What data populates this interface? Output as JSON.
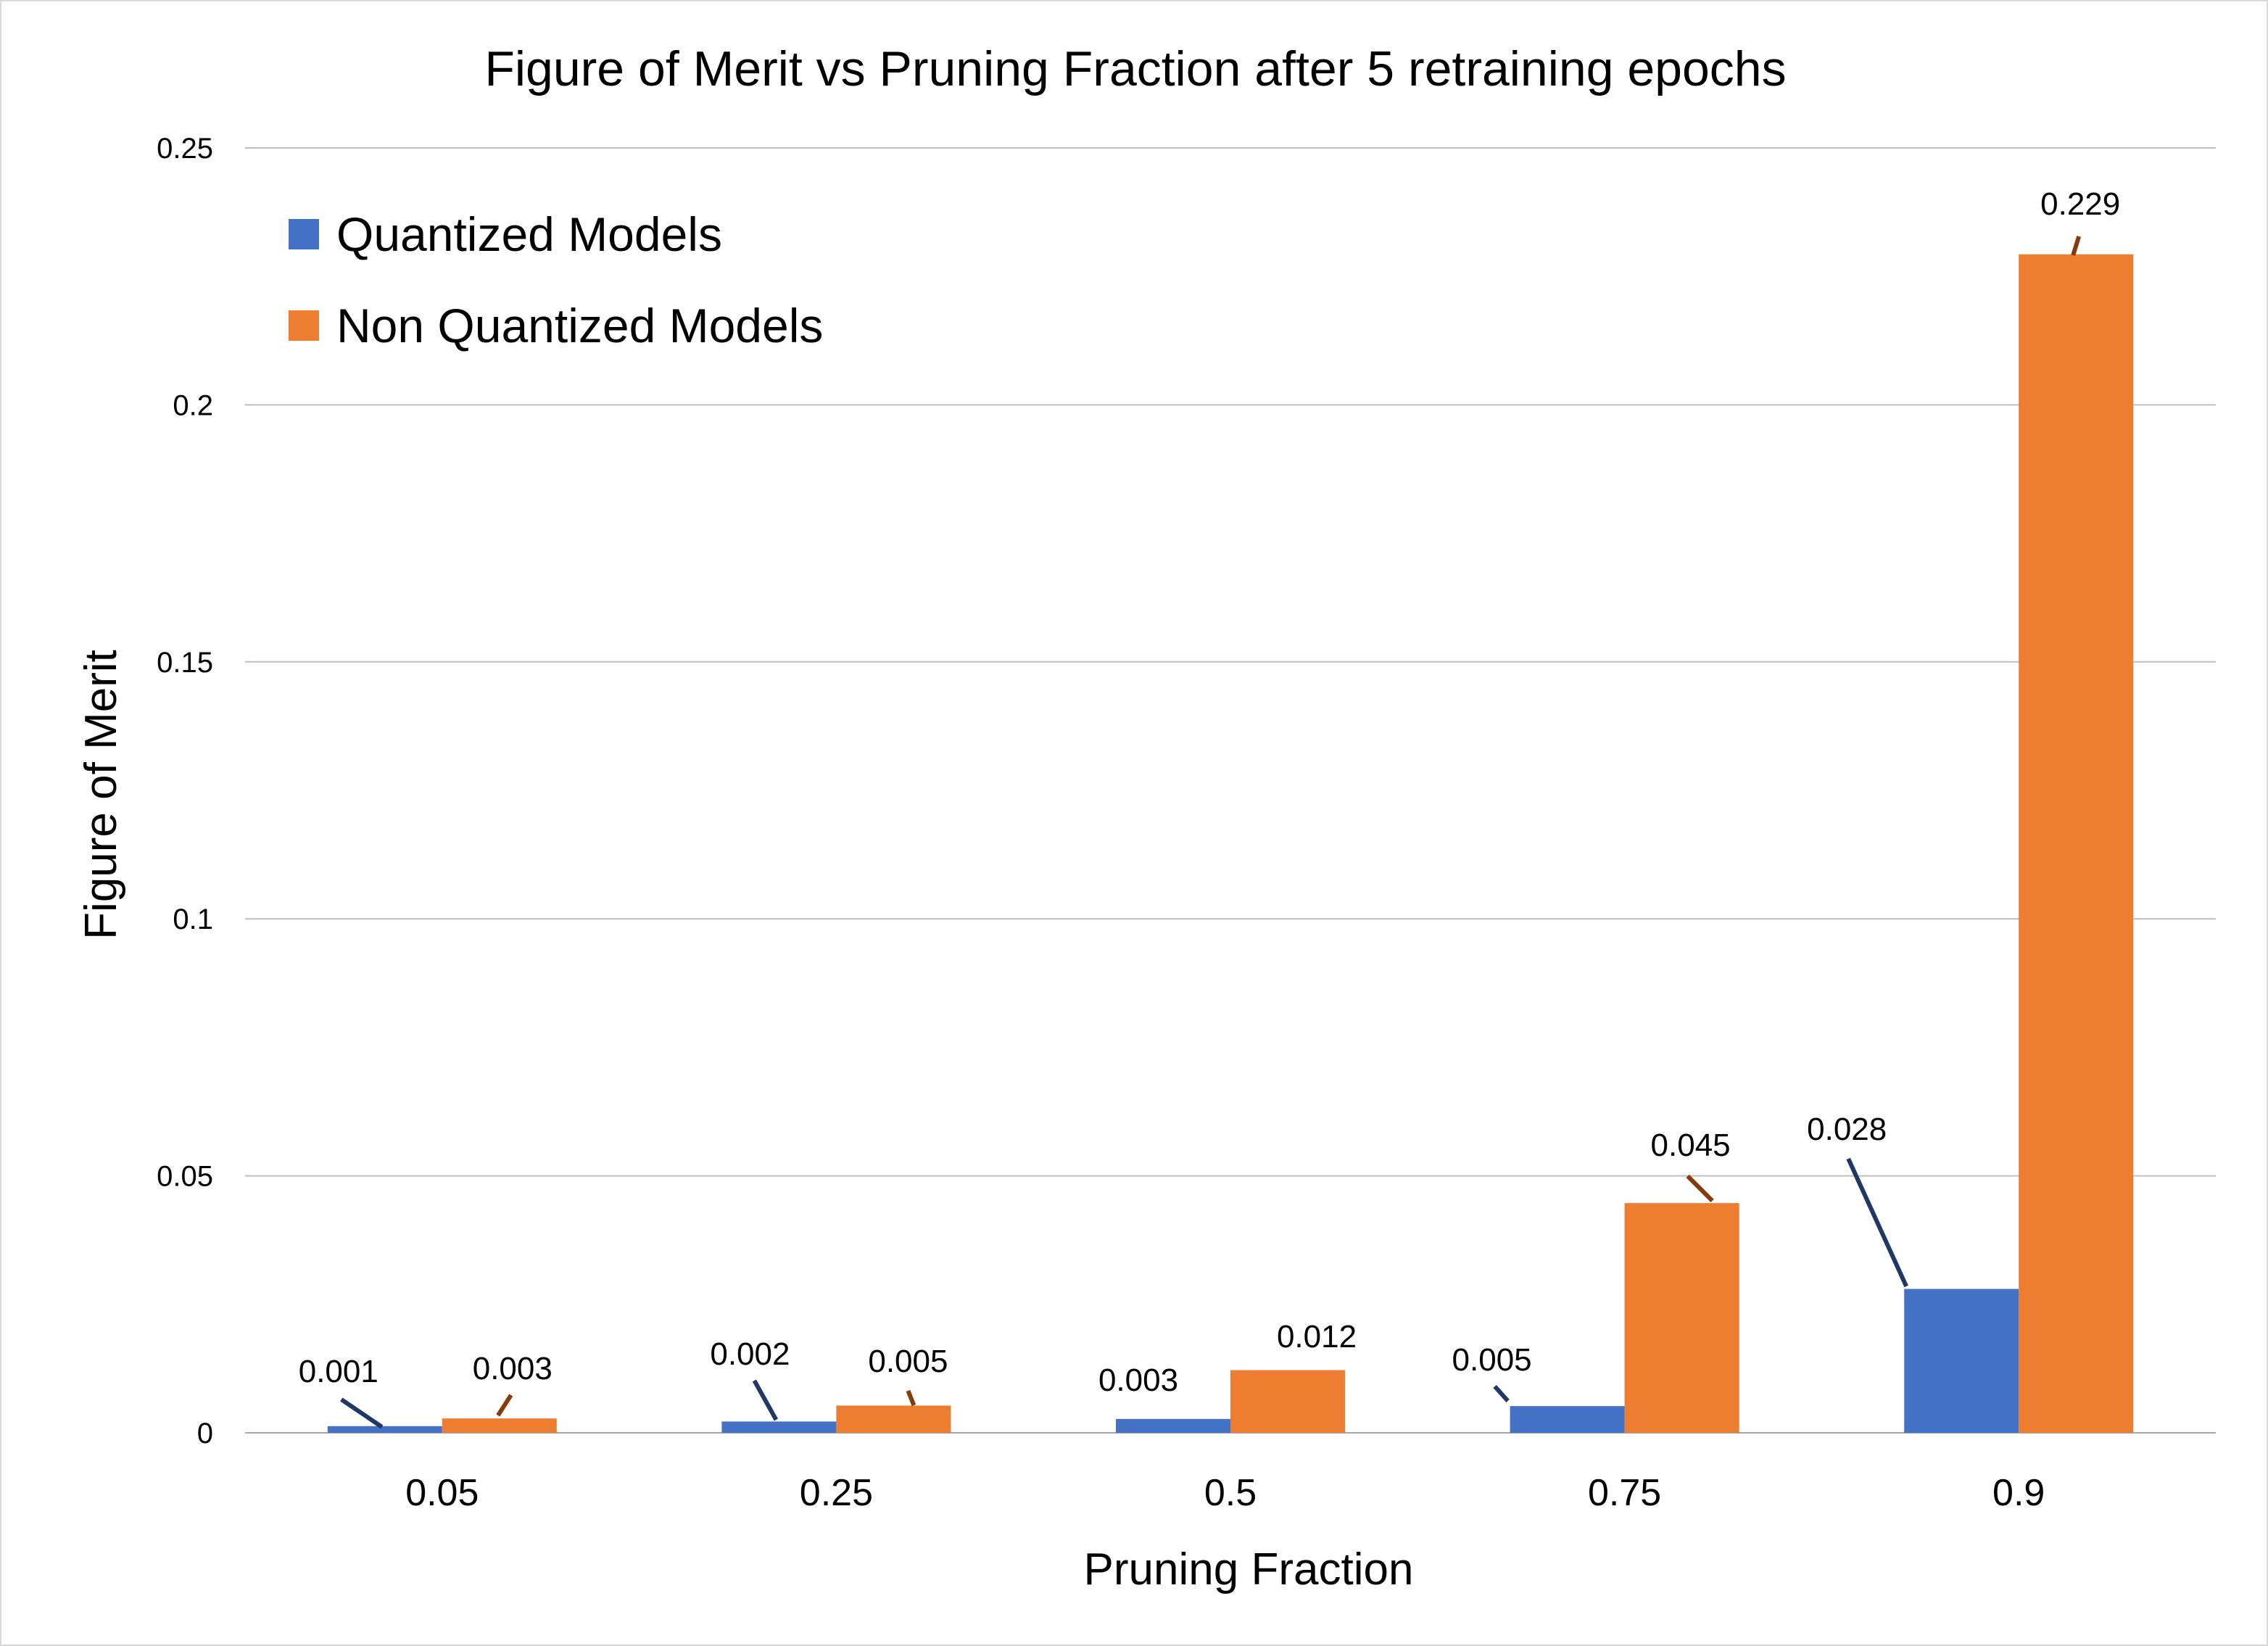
{
  "chart_data": {
    "type": "bar",
    "title": "Figure of Merit vs Pruning Fraction after 5 retraining epochs",
    "xlabel": "Pruning Fraction",
    "ylabel": "Figure of Merit",
    "categories": [
      "0.05",
      "0.25",
      "0.5",
      "0.75",
      "0.9"
    ],
    "series": [
      {
        "name": "Quantized Models",
        "color": "#4472C4",
        "leader_color": "#1F3864",
        "values": [
          0.0013,
          0.0022,
          0.0027,
          0.0052,
          0.028
        ],
        "labels": [
          "0.001",
          "0.002",
          "0.003",
          "0.005",
          "0.028"
        ]
      },
      {
        "name": "Non Quantized Models",
        "color": "#ED7D31",
        "leader_color": "#843C0C",
        "values": [
          0.0028,
          0.0053,
          0.0122,
          0.0447,
          0.2293
        ],
        "labels": [
          "0.003",
          "0.005",
          "0.012",
          "0.045",
          "0.229"
        ]
      }
    ],
    "ylim": [
      0,
      0.25
    ],
    "yticks": [
      0,
      0.05,
      0.1,
      0.15,
      0.2,
      0.25
    ],
    "ytick_labels": [
      "0",
      "0.05",
      "0.1",
      "0.15",
      "0.2",
      "0.25"
    ],
    "grid": true,
    "legend_position": "top-left",
    "gridline_color": "#BFBFBF"
  }
}
